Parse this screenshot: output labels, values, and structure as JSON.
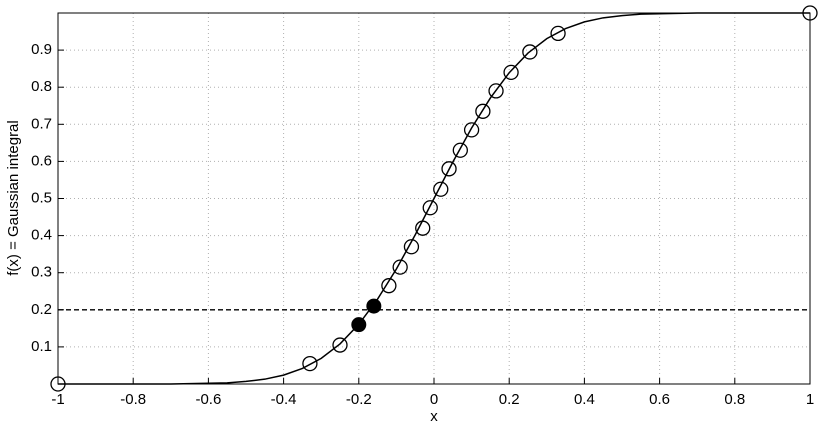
{
  "chart_data": {
    "type": "line",
    "xlabel": "x",
    "ylabel": "f(x) = Gaussian integral",
    "xlim": [
      -1,
      1
    ],
    "ylim": [
      0,
      1
    ],
    "xticks": [
      -1,
      -0.8,
      -0.6,
      -0.4,
      -0.2,
      0,
      0.2,
      0.4,
      0.6,
      0.8,
      1
    ],
    "yticks": [
      0.1,
      0.2,
      0.3,
      0.4,
      0.5,
      0.6,
      0.7,
      0.8,
      0.9
    ],
    "grid": true,
    "hline": {
      "value": 0.2,
      "color": "#000000",
      "style": "dashed"
    },
    "series": [
      {
        "style": "line",
        "color": "#000000",
        "x": [
          -1,
          -0.95,
          -0.9,
          -0.85,
          -0.8,
          -0.75,
          -0.7,
          -0.65,
          -0.6,
          -0.55,
          -0.5,
          -0.45,
          -0.4,
          -0.35,
          -0.3,
          -0.25,
          -0.2,
          -0.15,
          -0.1,
          -0.05,
          0,
          0.05,
          0.1,
          0.15,
          0.2,
          0.25,
          0.3,
          0.35,
          0.4,
          0.45,
          0.5,
          0.55,
          0.6,
          0.65,
          0.7,
          0.75,
          0.8,
          0.85,
          0.9,
          0.95,
          1
        ],
        "values": [
          0,
          0,
          0,
          0,
          0,
          0,
          0,
          0.001,
          0.002,
          0.003,
          0.007,
          0.013,
          0.024,
          0.042,
          0.069,
          0.108,
          0.161,
          0.229,
          0.31,
          0.402,
          0.5,
          0.598,
          0.69,
          0.771,
          0.839,
          0.892,
          0.931,
          0.958,
          0.976,
          0.987,
          0.993,
          0.997,
          0.998,
          0.999,
          1,
          1,
          1,
          1,
          1,
          1,
          1
        ]
      },
      {
        "style": "open-marker",
        "color": "#000000",
        "x": [
          -1,
          -0.33,
          -0.25,
          -0.12,
          -0.09,
          -0.06,
          -0.03,
          -0.01,
          0.018,
          0.04,
          0.07,
          0.1,
          0.13,
          0.165,
          0.205,
          0.255,
          0.33,
          1
        ],
        "values": [
          0,
          0.055,
          0.105,
          0.265,
          0.315,
          0.37,
          0.42,
          0.475,
          0.525,
          0.58,
          0.63,
          0.685,
          0.735,
          0.79,
          0.84,
          0.895,
          0.945,
          1
        ]
      },
      {
        "style": "filled-marker",
        "color": "#000000",
        "x": [
          -0.2,
          -0.16
        ],
        "values": [
          0.16,
          0.21
        ]
      }
    ]
  }
}
